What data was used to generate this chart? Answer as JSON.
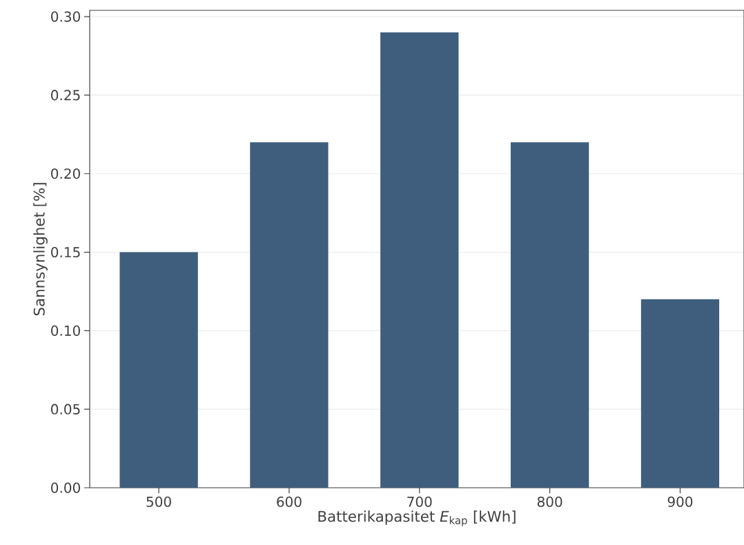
{
  "chart_data": {
    "type": "bar",
    "xlabel": "Batterikapasitet *E*$_{kap}$ [kWh]",
    "ylabel": "Sannsynlighet [%]",
    "categories": [
      "500",
      "600",
      "700",
      "800",
      "900"
    ],
    "values": [
      0.15,
      0.22,
      0.29,
      0.22,
      0.12
    ],
    "color": "#3f5e7d",
    "ylim": [
      0,
      0.304
    ],
    "yticks": [
      {
        "value": 0,
        "label": "0.00"
      },
      {
        "value": 0.05,
        "label": "0.05"
      },
      {
        "value": 0.1,
        "label": "0.10"
      },
      {
        "value": 0.15,
        "label": "0.15"
      },
      {
        "value": 0.2,
        "label": "0.20"
      },
      {
        "value": 0.25,
        "label": "0.25"
      },
      {
        "value": 0.3,
        "label": "0.30"
      }
    ],
    "grid": "y"
  }
}
